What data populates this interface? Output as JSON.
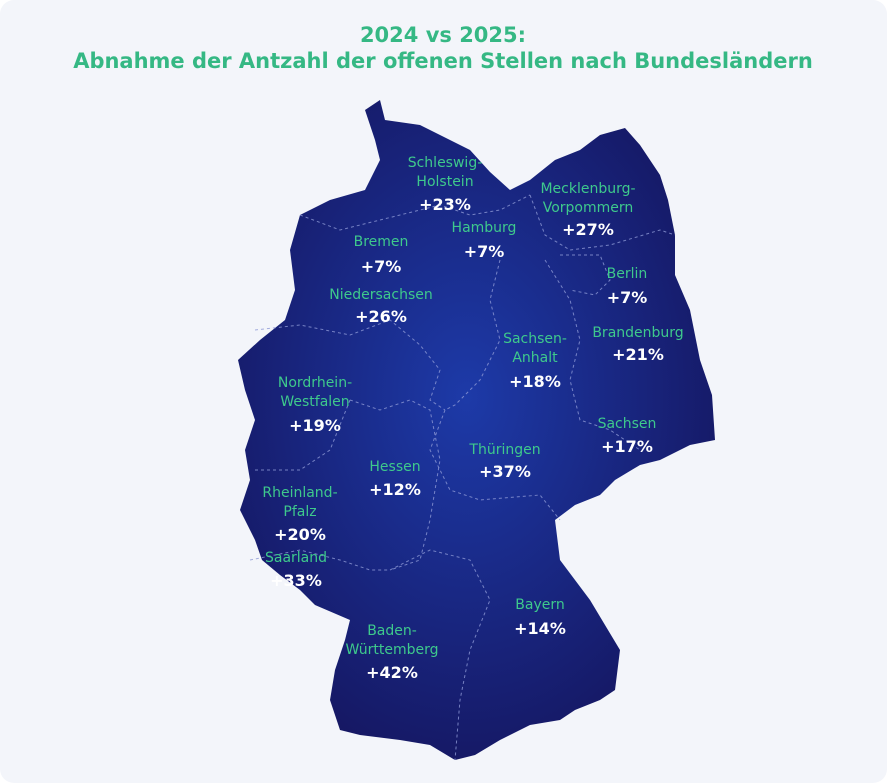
{
  "header": {
    "title": [
      "2024 vs 2025:",
      "Abnahme der Antzahl der offenen Stellen nach Bundesländern"
    ]
  },
  "regions": [
    {
      "name": [
        "Schleswig-",
        "Holstein"
      ],
      "change": "+23%"
    },
    {
      "name": [
        "Mecklenburg-",
        "Vorpommern"
      ],
      "change": "+27%"
    },
    {
      "name": [
        "Hamburg"
      ],
      "change": "+7%"
    },
    {
      "name": [
        "Bremen"
      ],
      "change": "+7%"
    },
    {
      "name": [
        "Niedersachsen"
      ],
      "change": "+26%"
    },
    {
      "name": [
        "Berlin"
      ],
      "change": "+7%"
    },
    {
      "name": [
        "Brandenburg"
      ],
      "change": "+21%"
    },
    {
      "name": [
        "Sachsen-",
        "Anhalt"
      ],
      "change": "+18%"
    },
    {
      "name": [
        "Nordrhein-",
        "Westfalen"
      ],
      "change": "+19%"
    },
    {
      "name": [
        "Sachsen"
      ],
      "change": "+17%"
    },
    {
      "name": [
        "Thüringen"
      ],
      "change": "+37%"
    },
    {
      "name": [
        "Hessen"
      ],
      "change": "+12%"
    },
    {
      "name": [
        "Rheinland-",
        "Pfalz"
      ],
      "change": "+20%"
    },
    {
      "name": [
        "Saarland"
      ],
      "change": "+33%"
    },
    {
      "name": [
        "Bayern"
      ],
      "change": "+14%"
    },
    {
      "name": [
        "Baden-",
        "Württemberg"
      ],
      "change": "+42%"
    }
  ]
}
